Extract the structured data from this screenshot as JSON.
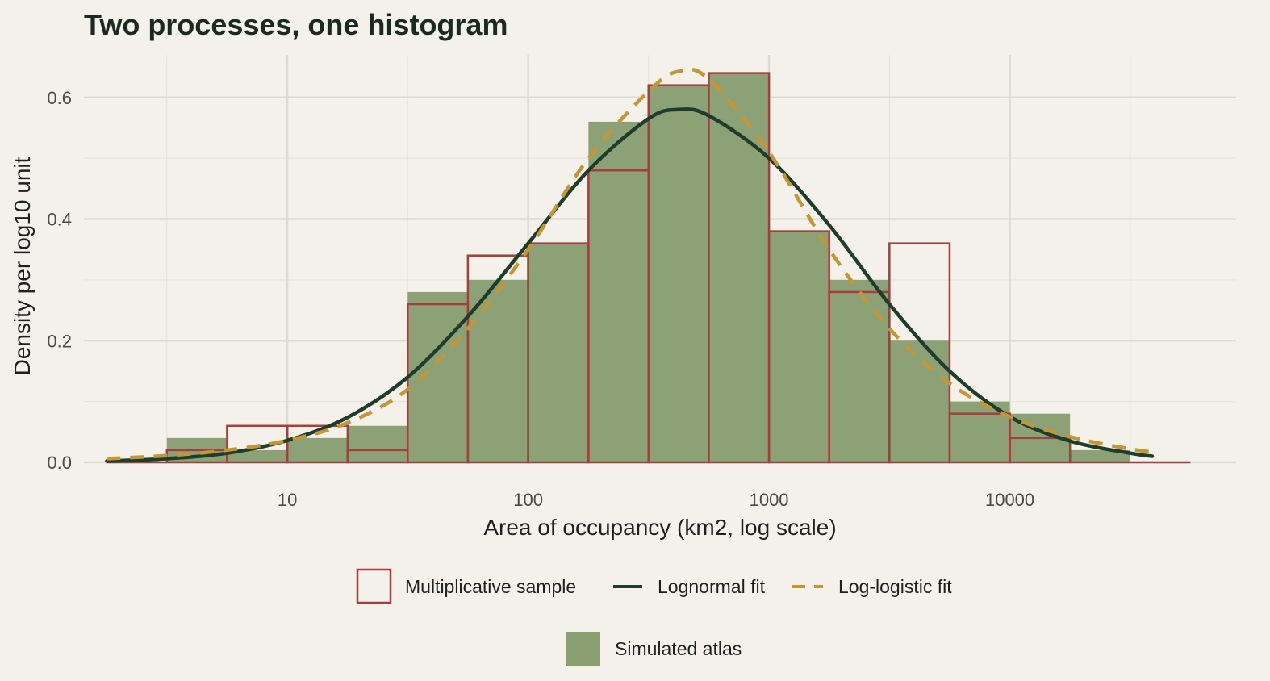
{
  "chart_data": {
    "type": "bar",
    "title": "Two processes, one histogram",
    "xlabel": "Area of occupancy (km2, log scale)",
    "ylabel": "Density per log10 unit",
    "x_scale": "log10",
    "xlim": [
      1.43,
      87000
    ],
    "ylim": [
      0,
      0.67
    ],
    "x_ticks": [
      10,
      100,
      1000,
      10000
    ],
    "x_tick_labels": [
      "10",
      "100",
      "1000",
      "10000"
    ],
    "y_ticks": [
      0.0,
      0.2,
      0.4,
      0.6
    ],
    "y_tick_labels": [
      "0.0",
      "0.2",
      "0.4",
      "0.6"
    ],
    "grid": true,
    "legend_position": "bottom",
    "colors": {
      "background": "#f3f1ea",
      "grid": "#dedbd2",
      "simulated_fill": "#8aa073",
      "sample_outline": "#a23f3f",
      "lognormal": "#1f3d2b",
      "loglogistic": "#c49636"
    },
    "bin_edges": [
      1.78,
      3.16,
      5.62,
      10,
      17.8,
      31.6,
      56.2,
      100,
      178,
      316,
      562,
      1000,
      1778,
      3162,
      5623,
      10000,
      17783,
      31623,
      56234
    ],
    "series": [
      {
        "name": "Simulated atlas",
        "kind": "histogram-filled",
        "values": [
          0.0,
          0.04,
          0.02,
          0.04,
          0.06,
          0.28,
          0.3,
          0.36,
          0.56,
          0.62,
          0.64,
          0.38,
          0.3,
          0.2,
          0.1,
          0.08,
          0.02,
          0.0
        ]
      },
      {
        "name": "Multiplicative sample",
        "kind": "histogram-outline",
        "values": [
          0.0,
          0.02,
          0.06,
          0.06,
          0.02,
          0.26,
          0.34,
          0.36,
          0.48,
          0.62,
          0.64,
          0.38,
          0.28,
          0.36,
          0.08,
          0.04,
          0.0,
          0.0
        ]
      },
      {
        "name": "Lognormal fit",
        "kind": "line",
        "x": [
          1.78,
          3.16,
          5.62,
          10,
          17.8,
          31.6,
          56.2,
          100,
          178,
          316,
          422,
          562,
          1000,
          1778,
          3162,
          5623,
          10000,
          17783,
          31623,
          39000
        ],
        "y": [
          0.002,
          0.006,
          0.015,
          0.036,
          0.074,
          0.14,
          0.24,
          0.36,
          0.48,
          0.565,
          0.58,
          0.57,
          0.5,
          0.39,
          0.26,
          0.15,
          0.075,
          0.035,
          0.015,
          0.01
        ]
      },
      {
        "name": "Log-logistic fit",
        "kind": "dashed-line",
        "x": [
          1.78,
          3.16,
          5.62,
          10,
          17.8,
          31.6,
          56.2,
          100,
          178,
          316,
          422,
          562,
          1000,
          1778,
          3162,
          5623,
          10000,
          17783,
          31623,
          39000
        ],
        "y": [
          0.006,
          0.011,
          0.02,
          0.036,
          0.065,
          0.12,
          0.22,
          0.35,
          0.5,
          0.61,
          0.643,
          0.63,
          0.51,
          0.35,
          0.22,
          0.13,
          0.075,
          0.042,
          0.022,
          0.017
        ]
      }
    ]
  }
}
